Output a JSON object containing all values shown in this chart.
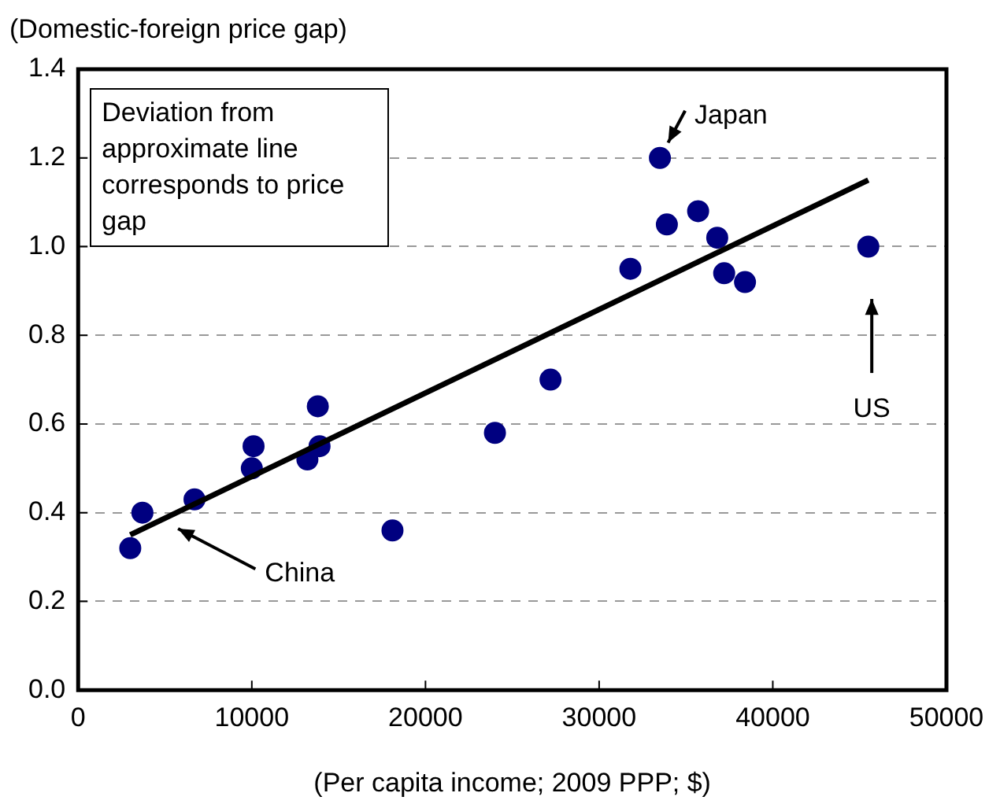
{
  "chart_data": {
    "type": "scatter",
    "xlabel": "(Per capita income; 2009 PPP; $)",
    "ylabel": "(Domestic-foreign price gap)",
    "xlim": [
      0,
      50000
    ],
    "xticks": [
      0,
      10000,
      20000,
      30000,
      40000,
      50000
    ],
    "ylim": [
      0,
      1.4
    ],
    "yticks": [
      {
        "value": 0,
        "label": "0.0"
      },
      0.2,
      0.4,
      0.6,
      0.8,
      {
        "value": 1,
        "label": "1.0"
      },
      1.2,
      1.4
    ],
    "grid": "y",
    "series": [
      {
        "marker": "circle",
        "color": "#000080",
        "x": [
          3000,
          3700,
          6700,
          10000,
          10100,
          13200,
          13800,
          13900,
          18100,
          24000,
          27200,
          31800,
          33500,
          33900,
          35700,
          36800,
          37200,
          38400,
          45500
        ],
        "values": [
          0.32,
          0.4,
          0.43,
          0.5,
          0.55,
          0.52,
          0.64,
          0.55,
          0.36,
          0.58,
          0.7,
          0.95,
          1.2,
          1.05,
          1.08,
          1.02,
          0.94,
          0.92,
          1.0
        ]
      },
      {
        "type": "line",
        "color": "#000000",
        "x": [
          3000,
          45500
        ],
        "values": [
          0.35,
          1.15
        ]
      }
    ],
    "annotations": [
      "Deviation from approximate line corresponds to price gap",
      {
        "text": "Japan",
        "x": 33500,
        "y": 1.2
      },
      "US",
      "China"
    ]
  }
}
